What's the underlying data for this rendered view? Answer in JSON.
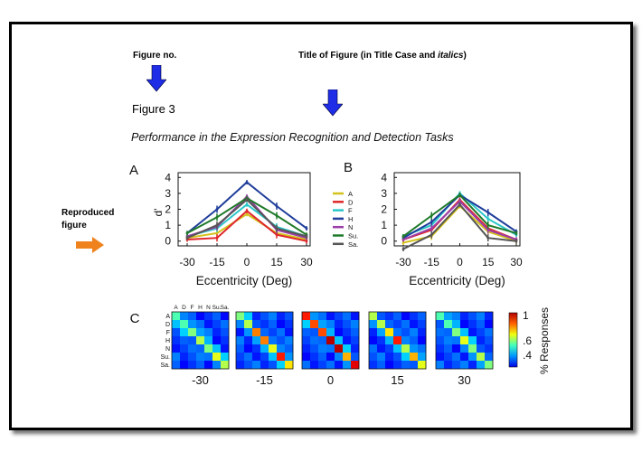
{
  "annotations": {
    "figure_no_label": "Figure no.",
    "title_label_prefix": "Title of Figure (in Title Case and ",
    "title_label_italic": "italics",
    "title_label_suffix": ")",
    "reproduced_line1": "Reproduced",
    "reproduced_line2": "figure"
  },
  "figure": {
    "number": "Figure 3",
    "title": "Performance in the Expression Recognition and Detection Tasks"
  },
  "colors": {
    "arrow_blue": "#1f2ee6",
    "arrow_orange": "#f0821e"
  },
  "chart_data": [
    {
      "panel": "A",
      "type": "line",
      "xlabel": "Eccentricity (Deg)",
      "ylabel": "d'",
      "x": [
        -30,
        -15,
        0,
        15,
        30
      ],
      "xticks": [
        "-30",
        "-15",
        "0",
        "15",
        "30"
      ],
      "yticks": [
        "0",
        "1",
        "2",
        "3",
        "4"
      ],
      "ylim": [
        -0.3,
        4.3
      ],
      "series": [
        {
          "name": "A",
          "color": "#d4c21c",
          "values": [
            0.2,
            0.5,
            1.7,
            0.5,
            0.1
          ]
        },
        {
          "name": "D",
          "color": "#e0262a",
          "values": [
            0.1,
            0.2,
            1.9,
            0.4,
            0.0
          ]
        },
        {
          "name": "F",
          "color": "#2bc6c8",
          "values": [
            0.3,
            0.8,
            2.3,
            0.9,
            0.3
          ]
        },
        {
          "name": "H",
          "color": "#1f3d9a",
          "values": [
            0.5,
            2.0,
            3.7,
            2.2,
            0.8
          ]
        },
        {
          "name": "N",
          "color": "#9b3fa8",
          "values": [
            0.3,
            0.9,
            2.8,
            0.7,
            0.2
          ]
        },
        {
          "name": "Su.",
          "color": "#1f7a2a",
          "values": [
            0.5,
            1.5,
            2.7,
            1.6,
            0.4
          ]
        },
        {
          "name": "Sa.",
          "color": "#555555",
          "values": [
            0.2,
            1.0,
            2.6,
            0.8,
            0.3
          ]
        }
      ]
    },
    {
      "panel": "B",
      "type": "line",
      "xlabel": "Eccentricity (Deg)",
      "ylabel": "",
      "x": [
        -30,
        -15,
        0,
        15,
        30
      ],
      "xticks": [
        "-30",
        "-15",
        "0",
        "15",
        "30"
      ],
      "yticks": [
        "0",
        "1",
        "2",
        "3",
        "4"
      ],
      "ylim": [
        -0.3,
        4.3
      ],
      "series": [
        {
          "name": "A",
          "color": "#d4c21c",
          "values": [
            -0.1,
            0.3,
            2.2,
            0.6,
            0.0
          ]
        },
        {
          "name": "D",
          "color": "#e0262a",
          "values": [
            0.1,
            0.7,
            2.6,
            0.8,
            0.1
          ]
        },
        {
          "name": "F",
          "color": "#2bc6c8",
          "values": [
            0.3,
            1.0,
            3.0,
            1.4,
            0.4
          ]
        },
        {
          "name": "H",
          "color": "#1f3d9a",
          "values": [
            0.2,
            1.2,
            2.9,
            1.8,
            0.6
          ]
        },
        {
          "name": "N",
          "color": "#9b3fa8",
          "values": [
            0.1,
            0.8,
            2.5,
            0.7,
            0.1
          ]
        },
        {
          "name": "Su.",
          "color": "#1f7a2a",
          "values": [
            0.3,
            1.6,
            2.9,
            1.0,
            0.5
          ]
        },
        {
          "name": "Sa.",
          "color": "#555555",
          "values": [
            -0.5,
            0.4,
            2.3,
            0.2,
            0.0
          ]
        }
      ]
    },
    {
      "panel": "C",
      "type": "heatmap",
      "row_labels": [
        "A",
        "D",
        "F",
        "H",
        "N",
        "Su.",
        "Sa."
      ],
      "col_labels": [
        "A",
        "D",
        "F",
        "H",
        "N",
        "Su.",
        "Sa."
      ],
      "matrix_labels": [
        "-30",
        "-15",
        "0",
        "15",
        "30"
      ],
      "colorbar_label": "% Responses",
      "colorbar_ticks": [
        "1",
        ".6",
        ".4"
      ],
      "diagonals": [
        [
          0.45,
          0.45,
          0.5,
          0.55,
          0.5,
          0.6,
          0.55
        ],
        [
          0.5,
          0.55,
          0.75,
          0.75,
          0.6,
          0.85,
          0.65
        ],
        [
          0.85,
          0.8,
          0.8,
          0.95,
          0.95,
          0.7,
          0.9
        ],
        [
          0.55,
          0.55,
          0.65,
          0.85,
          0.55,
          0.7,
          0.6
        ],
        [
          0.45,
          0.45,
          0.5,
          0.6,
          0.5,
          0.55,
          0.5
        ]
      ]
    }
  ]
}
